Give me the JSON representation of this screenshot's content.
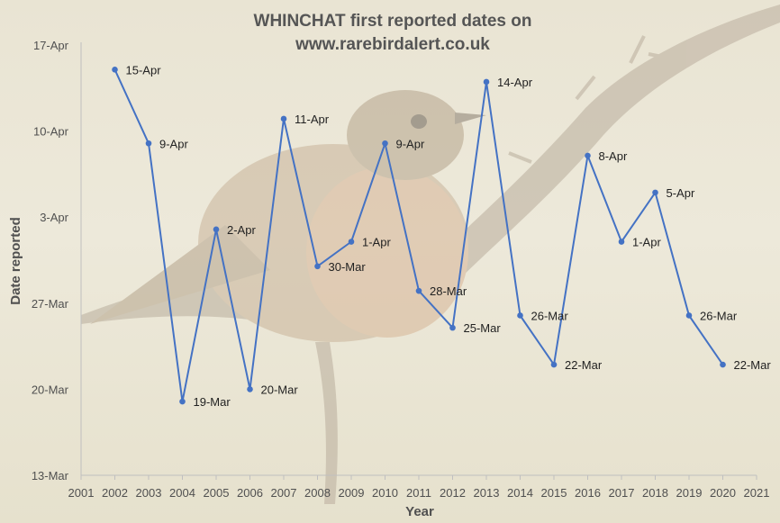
{
  "chart_data": {
    "type": "line",
    "title_lines": [
      "WHINCHAT first reported dates on",
      "www.rarebirdalert.co.uk"
    ],
    "xlabel": "Year",
    "ylabel": "Date reported",
    "xlim": [
      2001,
      2021
    ],
    "x_ticks": [
      "2001",
      "2002",
      "2003",
      "2004",
      "2005",
      "2006",
      "2007",
      "2008",
      "2009",
      "2010",
      "2011",
      "2012",
      "2013",
      "2014",
      "2015",
      "2016",
      "2017",
      "2018",
      "2019",
      "2020",
      "2021"
    ],
    "ylim": [
      "13-Mar",
      "17-Apr"
    ],
    "y_ticks": [
      "13-Mar",
      "20-Mar",
      "27-Mar",
      "3-Apr",
      "10-Apr",
      "17-Apr"
    ],
    "grid": false,
    "legend": "none",
    "series": [
      {
        "color": "#4472c4",
        "points": [
          {
            "x": 2002,
            "y": "15-Apr"
          },
          {
            "x": 2003,
            "y": "9-Apr"
          },
          {
            "x": 2004,
            "y": "19-Mar"
          },
          {
            "x": 2005,
            "y": "2-Apr"
          },
          {
            "x": 2006,
            "y": "20-Mar"
          },
          {
            "x": 2007,
            "y": "11-Apr"
          },
          {
            "x": 2008,
            "y": "30-Mar"
          },
          {
            "x": 2009,
            "y": "1-Apr"
          },
          {
            "x": 2010,
            "y": "9-Apr"
          },
          {
            "x": 2011,
            "y": "28-Mar"
          },
          {
            "x": 2012,
            "y": "25-Mar"
          },
          {
            "x": 2013,
            "y": "14-Apr"
          },
          {
            "x": 2014,
            "y": "26-Mar"
          },
          {
            "x": 2015,
            "y": "22-Mar"
          },
          {
            "x": 2016,
            "y": "8-Apr"
          },
          {
            "x": 2017,
            "y": "1-Apr"
          },
          {
            "x": 2018,
            "y": "5-Apr"
          },
          {
            "x": 2019,
            "y": "26-Mar"
          },
          {
            "x": 2020,
            "y": "22-Mar"
          }
        ]
      }
    ]
  },
  "background": {
    "description_icon": "whinchat-photo-icon",
    "colors": {
      "backdrop": "#e9e4d3",
      "branch": "#b9ad9c",
      "bird_body": "#c9b49a",
      "bird_breast": "#d7b597"
    }
  }
}
